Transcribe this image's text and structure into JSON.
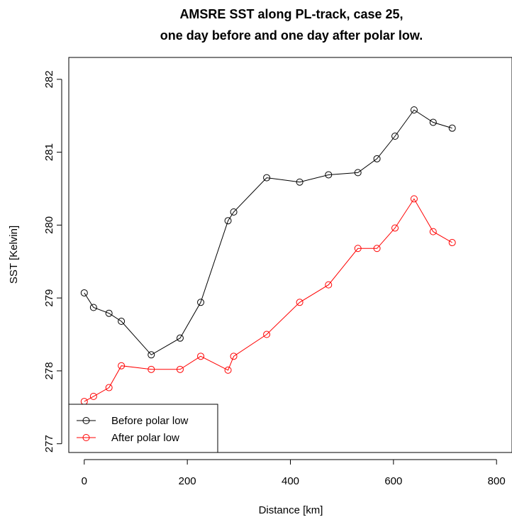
{
  "chart_data": {
    "type": "line",
    "title_line1": "AMSRE SST along PL-track, case 25,",
    "title_line2": "one day before and one day after polar low.",
    "xlabel": "Distance [km]",
    "ylabel": "SST [Kelvin]",
    "xlim": [
      -30,
      830
    ],
    "ylim": [
      276.88,
      282.3
    ],
    "xticks": [
      0,
      200,
      400,
      600,
      800
    ],
    "yticks": [
      277,
      278,
      279,
      280,
      281,
      282
    ],
    "grid": false,
    "legend": "bottom-left",
    "series": [
      {
        "name": "Before polar low",
        "color": "#000000",
        "x": [
          0,
          18,
          48,
          72,
          130,
          186,
          226,
          279,
          290,
          354,
          418,
          474,
          531,
          568,
          603,
          640,
          677,
          714
        ],
        "y": [
          279.07,
          278.87,
          278.79,
          278.68,
          278.22,
          278.45,
          278.94,
          280.06,
          280.18,
          280.65,
          280.59,
          280.69,
          280.72,
          280.91,
          281.22,
          281.58,
          281.41,
          281.33
        ]
      },
      {
        "name": "After polar low",
        "color": "#ff0000",
        "x": [
          0,
          18,
          48,
          72,
          130,
          186,
          226,
          279,
          290,
          354,
          418,
          474,
          531,
          568,
          603,
          640,
          677,
          714
        ],
        "y": [
          277.58,
          277.65,
          277.77,
          278.07,
          278.02,
          278.02,
          278.2,
          278.01,
          278.2,
          278.5,
          278.94,
          279.18,
          279.68,
          279.68,
          279.96,
          280.36,
          279.91,
          279.76
        ]
      }
    ]
  }
}
